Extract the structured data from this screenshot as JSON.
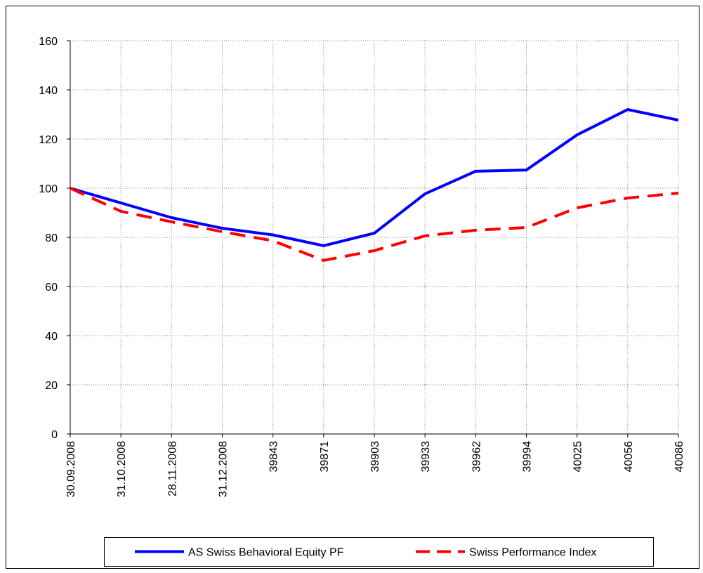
{
  "chart_data": {
    "type": "line",
    "categories": [
      "30.09.2008",
      "31.10.2008",
      "28.11.2008",
      "31.12.2008",
      "39843",
      "39871",
      "39903",
      "39933",
      "39962",
      "39994",
      "40025",
      "40056",
      "40086"
    ],
    "series": [
      {
        "name": "AS Swiss Behavioral Equity PF",
        "color": "#0000ff",
        "linestyle": "solid",
        "values": [
          100,
          94,
          88,
          83.7,
          81,
          76.6,
          81.7,
          97.7,
          106.9,
          107.4,
          121.7,
          132,
          127.7
        ]
      },
      {
        "name": "Swiss Performance Index",
        "color": "#ff0000",
        "linestyle": "dashed",
        "values": [
          100,
          90.6,
          86.3,
          82.3,
          78.6,
          70.6,
          74.6,
          80.6,
          82.9,
          84,
          92,
          96,
          98
        ]
      }
    ],
    "ylim": [
      0,
      160
    ],
    "yticks": [
      0,
      20,
      40,
      60,
      80,
      100,
      120,
      140,
      160
    ],
    "grid": true,
    "legend": "bottom"
  }
}
